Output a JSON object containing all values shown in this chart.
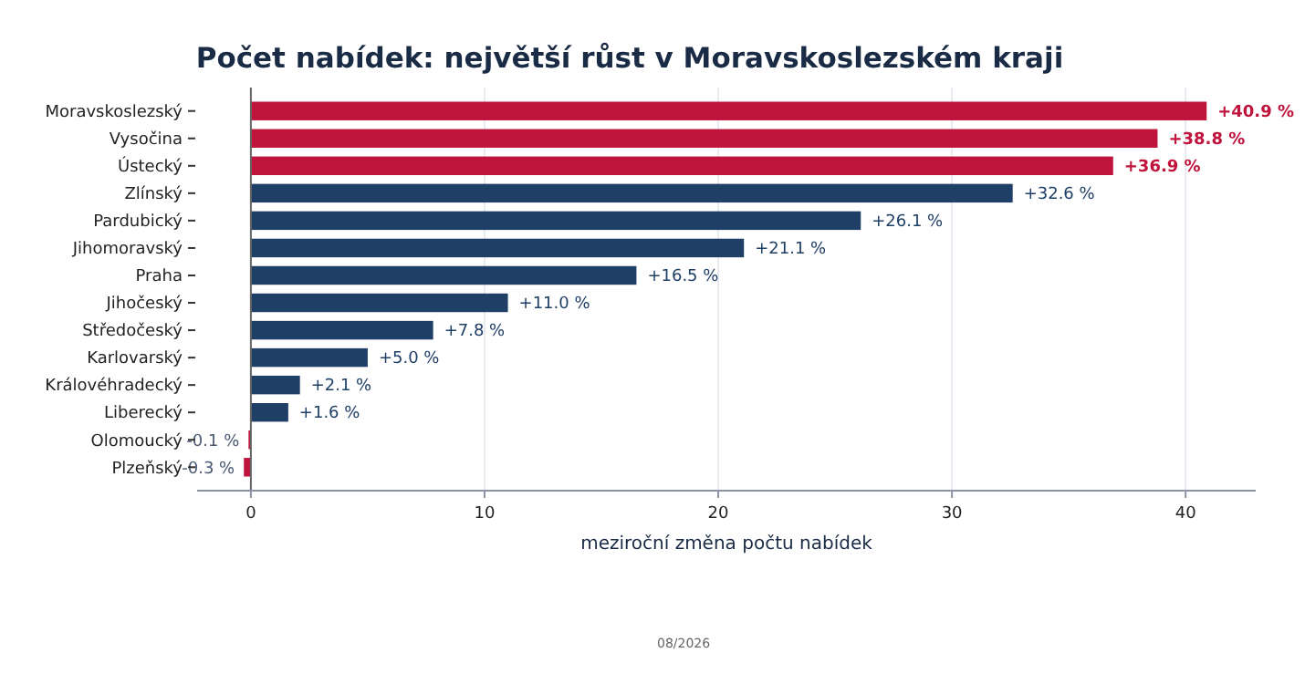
{
  "chart_data": {
    "type": "bar",
    "orientation": "horizontal",
    "title": "Počet nabídek: největší růst v Moravskoslezském kraji",
    "xlabel": "meziroční změna počtu nabídek",
    "categories": [
      "Moravskoslezský",
      "Vysočina",
      "Ústecký",
      "Zlínský",
      "Pardubický",
      "Jihomoravský",
      "Praha",
      "Jihočeský",
      "Středočeský",
      "Karlovarský",
      "Královéhradecký",
      "Liberecký",
      "Olomoucký",
      "Plzeňský"
    ],
    "values": [
      40.9,
      38.8,
      36.9,
      32.6,
      26.1,
      21.1,
      16.5,
      11.0,
      7.8,
      5.0,
      2.1,
      1.6,
      -0.1,
      -0.3
    ],
    "colors": [
      "#c0143c",
      "#c0143c",
      "#c0143c",
      "#1f3f66",
      "#1f3f66",
      "#1f3f66",
      "#1f3f66",
      "#1f3f66",
      "#1f3f66",
      "#1f3f66",
      "#1f3f66",
      "#1f3f66",
      "#c0143c",
      "#c0143c"
    ],
    "value_labels": [
      "+40.9 %",
      "+38.8 %",
      "+36.9 %",
      "+32.6 %",
      "+26.1 %",
      "+21.1 %",
      "+16.5 %",
      "+11.0 %",
      "+7.8 %",
      "+5.0 %",
      "+2.1 %",
      "+1.6 %",
      "-0.1 %",
      "-0.3 %"
    ],
    "xlim": [
      -2.3,
      43
    ],
    "xticks": [
      0,
      10,
      20,
      30,
      40
    ],
    "grid": "x",
    "annotations": [
      "08/2026"
    ]
  }
}
